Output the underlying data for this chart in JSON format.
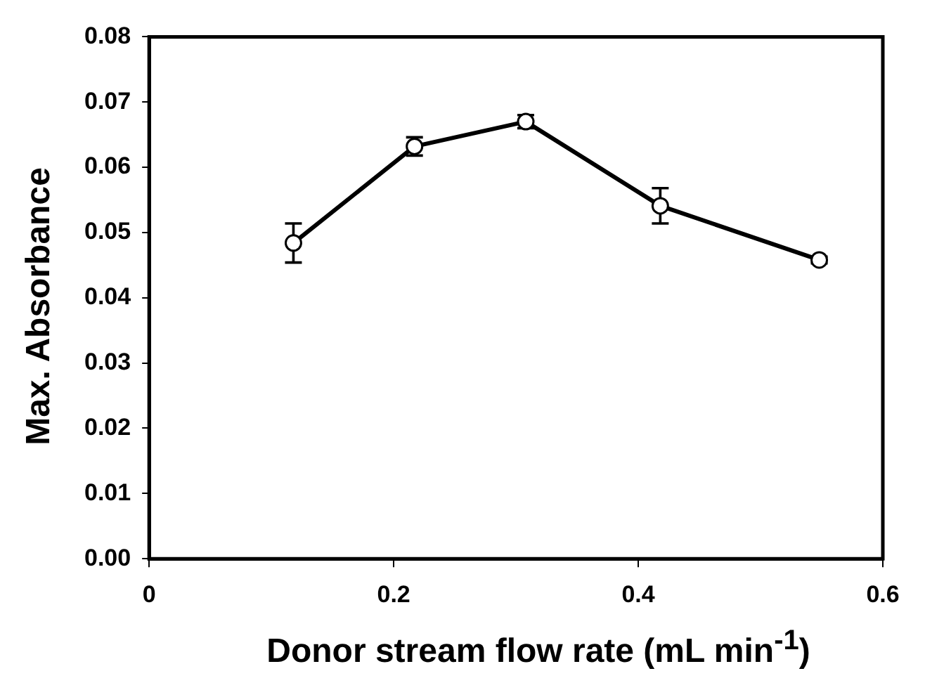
{
  "chart_data": {
    "type": "line",
    "xlabel": "Donor stream flow rate (mL min$^{-1}$)",
    "ylabel": "Max. Absorbance",
    "x": [
      0.118,
      0.217,
      0.308,
      0.418,
      0.548
    ],
    "series": [
      {
        "color": "#000000",
        "values": [
          0.0484,
          0.0632,
          0.067,
          0.0541,
          0.0458
        ],
        "errors": [
          0.003,
          0.0014,
          0.001,
          0.0027,
          0.0005
        ]
      }
    ],
    "xlim": [
      0,
      0.6
    ],
    "xticks": [
      0,
      0.2,
      0.4,
      0.6
    ],
    "ylim": [
      0,
      0.08
    ],
    "yticks": [
      {
        "value": 0,
        "label": "0.00"
      },
      {
        "value": 0.01,
        "label": "0.01"
      },
      {
        "value": 0.02,
        "label": "0.02"
      },
      {
        "value": 0.03,
        "label": "0.03"
      },
      {
        "value": 0.04,
        "label": "0.04"
      },
      {
        "value": 0.05,
        "label": "0.05"
      },
      {
        "value": 0.06,
        "label": "0.06"
      },
      {
        "value": 0.07,
        "label": "0.07"
      },
      {
        "value": 0.08,
        "label": "0.08"
      }
    ],
    "grid": false,
    "legend": false,
    "marker": "circle",
    "line_style": "solid"
  }
}
